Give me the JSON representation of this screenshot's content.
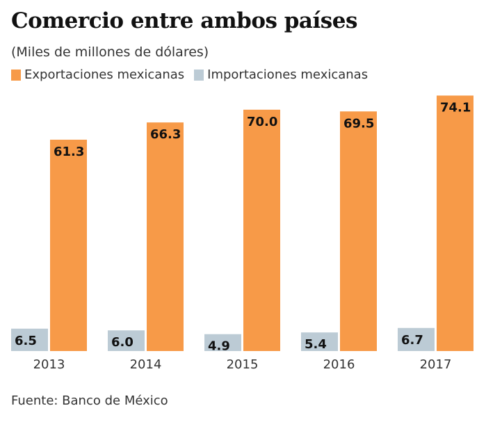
{
  "chart_data": {
    "type": "bar",
    "title": "Comercio entre ambos países",
    "subtitle": "(Miles de millones de dólares)",
    "categories": [
      "2013",
      "2014",
      "2015",
      "2016",
      "2017"
    ],
    "series": [
      {
        "name": "Importaciones mexicanas",
        "color": "#BCCBD5",
        "values": [
          6.5,
          6.0,
          4.9,
          5.4,
          6.7
        ],
        "labels": [
          "6.5",
          "6.0",
          "4.9",
          "5.4",
          "6.7"
        ]
      },
      {
        "name": "Exportaciones mexicanas",
        "color": "#F79A48",
        "values": [
          61.3,
          66.3,
          70.0,
          69.5,
          74.1
        ],
        "labels": [
          "61.3",
          "66.3",
          "70.0",
          "69.5",
          "74.1"
        ]
      }
    ],
    "legend": [
      {
        "name": "Exportaciones mexicanas",
        "color": "#F79A48"
      },
      {
        "name": "Importaciones mexicanas",
        "color": "#BCCBD5"
      }
    ],
    "ylim": [
      0,
      75
    ],
    "grid": false,
    "legend_placement": "top-left",
    "source": "Fuente: Banco de México"
  }
}
